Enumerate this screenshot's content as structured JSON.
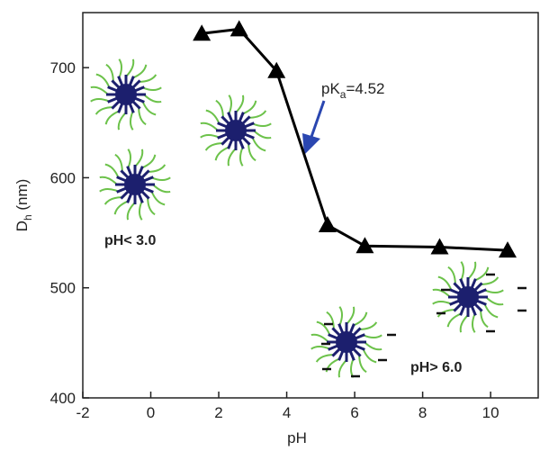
{
  "chart_data": {
    "type": "line",
    "x_label": "pH",
    "y_label": {
      "main": "D",
      "sub": "h",
      "rest": " (nm)"
    },
    "annotations": [
      {
        "main": "pK",
        "sub": "a",
        "rest": "=4.52"
      }
    ],
    "notes": [
      "pH< 3.0",
      "pH> 6.0"
    ],
    "x": [
      1.5,
      2.6,
      3.7,
      5.2,
      6.3,
      8.5,
      10.5
    ],
    "series": [
      {
        "color": "#000000",
        "values": [
          731,
          735,
          697,
          557,
          538,
          537,
          534
        ]
      }
    ],
    "xlim": [
      -2,
      11.4
    ],
    "xticks": [
      -2,
      0,
      2,
      4,
      6,
      8,
      10
    ],
    "ylim": [
      400,
      750
    ],
    "yticks": [
      400,
      500,
      600,
      700
    ]
  }
}
